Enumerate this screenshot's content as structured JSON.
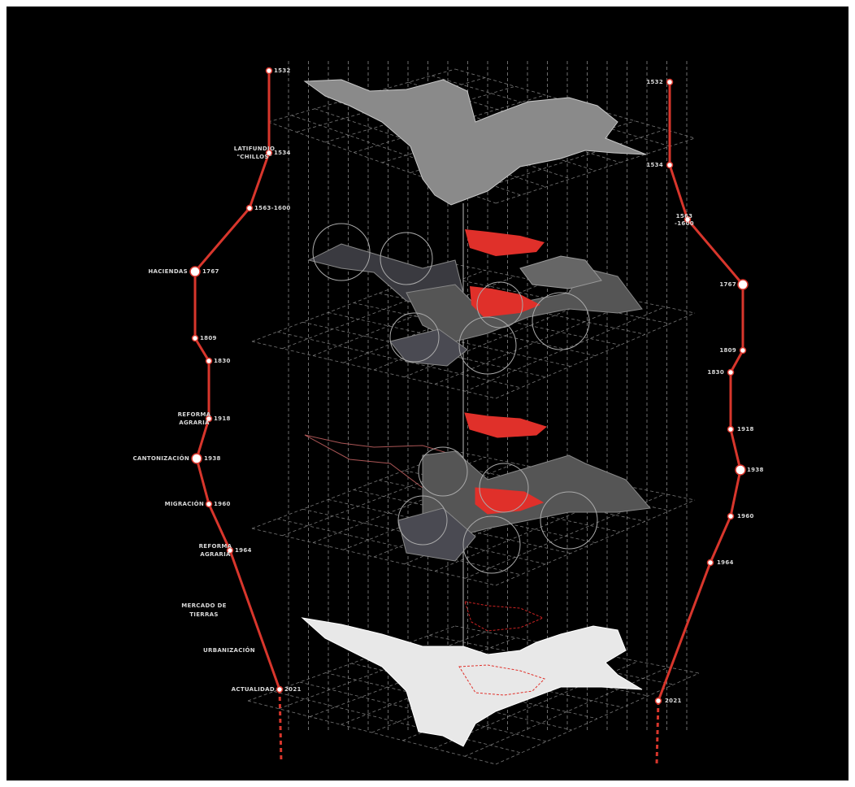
{
  "left_timeline": [
    {
      "year": "1532",
      "label": []
    },
    {
      "year": "1534",
      "label": [
        "LATIFUNDIO",
        "\"CHILLOS\""
      ]
    },
    {
      "year": "1563-1600",
      "label": []
    },
    {
      "year": "1767",
      "label": [
        "HACIENDAS"
      ]
    },
    {
      "year": "1809",
      "label": []
    },
    {
      "year": "1830",
      "label": []
    },
    {
      "year": "1918",
      "label": [
        "REFORMA",
        "AGRARIA"
      ]
    },
    {
      "year": "1938",
      "label": [
        "CANTONIZACIÓN"
      ]
    },
    {
      "year": "1960",
      "label": [
        "MIGRACIÓN"
      ]
    },
    {
      "year": "1964",
      "label": [
        "REFORMA",
        "AGRARIA"
      ]
    },
    {
      "year": "2021",
      "label": [
        "ACTUALIDAD"
      ]
    }
  ],
  "extra_labels": [
    [
      "MERCADO DE",
      "TIERRAS"
    ],
    [
      "URBANIZACIÓN"
    ]
  ],
  "right_timeline": [
    "1532",
    "1534",
    "1563\n-1600",
    "1767",
    "1809",
    "1830",
    "1918",
    "1938",
    "1960",
    "1964",
    "2021"
  ]
}
